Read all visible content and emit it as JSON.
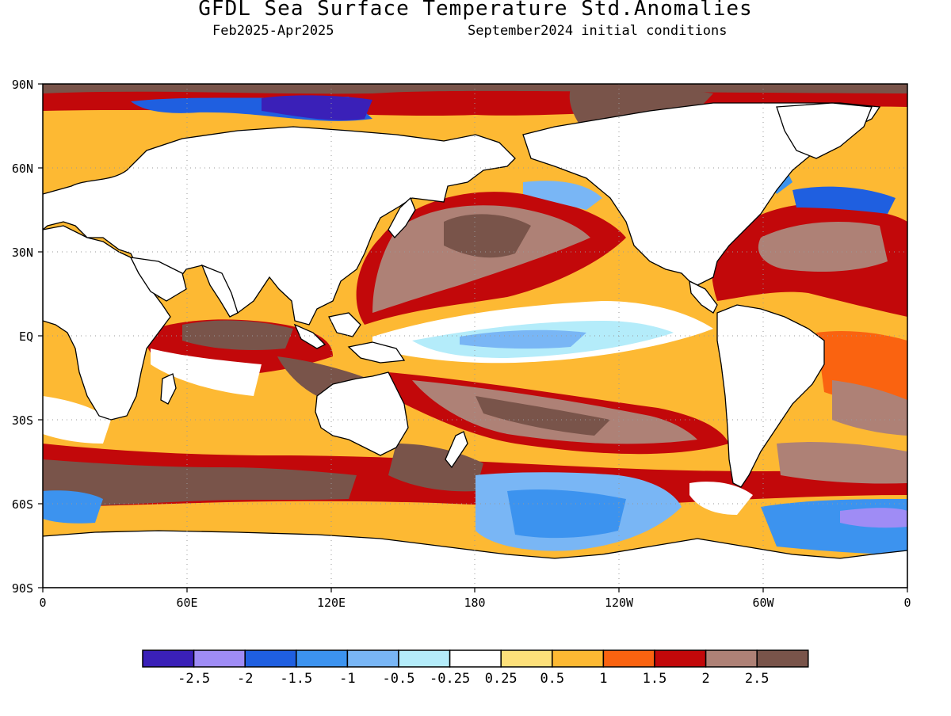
{
  "header": {
    "title": "GFDL Sea Surface Temperature Std.Anomalies",
    "period": "Feb2025-Apr2025",
    "init": "September2024 initial conditions"
  },
  "map": {
    "lat_labels": [
      "90N",
      "60N",
      "30N",
      "EQ",
      "30S",
      "60S",
      "90S"
    ],
    "lon_labels": [
      "0",
      "60E",
      "120E",
      "180",
      "120W",
      "60W",
      "0"
    ],
    "grid": true,
    "land_color": "#ffffff"
  },
  "legend": {
    "colors": [
      "#3a20b8",
      "#9f8cf5",
      "#1f5fe0",
      "#3c93ef",
      "#79b6f5",
      "#b4ecfa",
      "#ffffff",
      "#fde07a",
      "#fdb933",
      "#fa6310",
      "#c2080a",
      "#ae8176",
      "#79544a"
    ],
    "labels": [
      "-2.5",
      "-2",
      "-1.5",
      "-1",
      "-0.5",
      "-0.25",
      "0.25",
      "0.5",
      "1",
      "1.5",
      "2",
      "2.5"
    ]
  }
}
